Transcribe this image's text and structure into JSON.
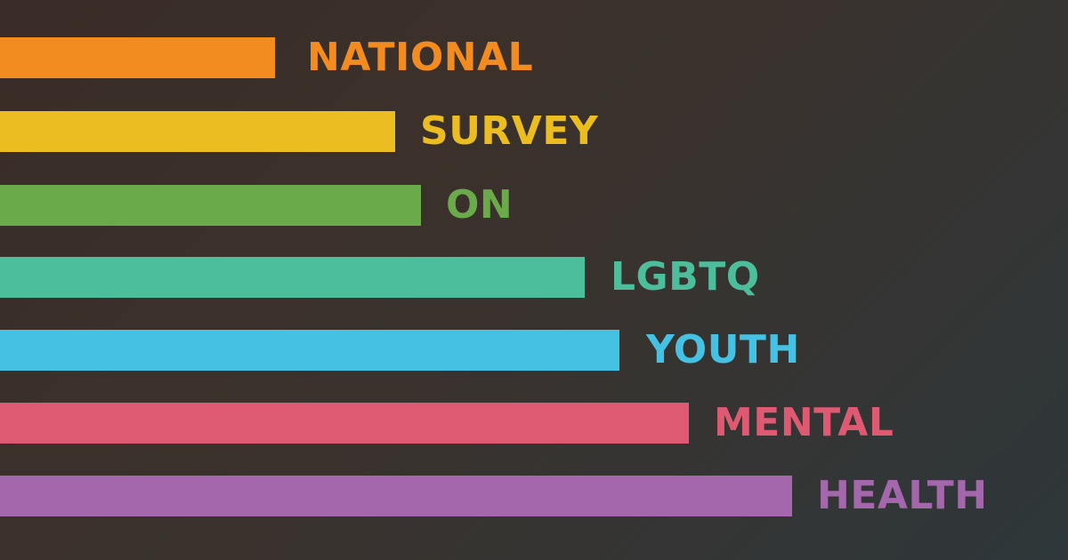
{
  "rows": [
    {
      "word": "NATIONAL",
      "color": "#f28c20"
    },
    {
      "word": "SURVEY",
      "color": "#ecbd20"
    },
    {
      "word": "ON",
      "color": "#6aaa4b"
    },
    {
      "word": "LGBTQ",
      "color": "#4dbe9b"
    },
    {
      "word": "YOUTH",
      "color": "#45c2e3"
    },
    {
      "word": "MENTAL",
      "color": "#de5a72"
    },
    {
      "word": "HEALTH",
      "color": "#a567ac"
    }
  ],
  "background": {
    "from": "#3a2c27",
    "to": "#2e373a"
  }
}
